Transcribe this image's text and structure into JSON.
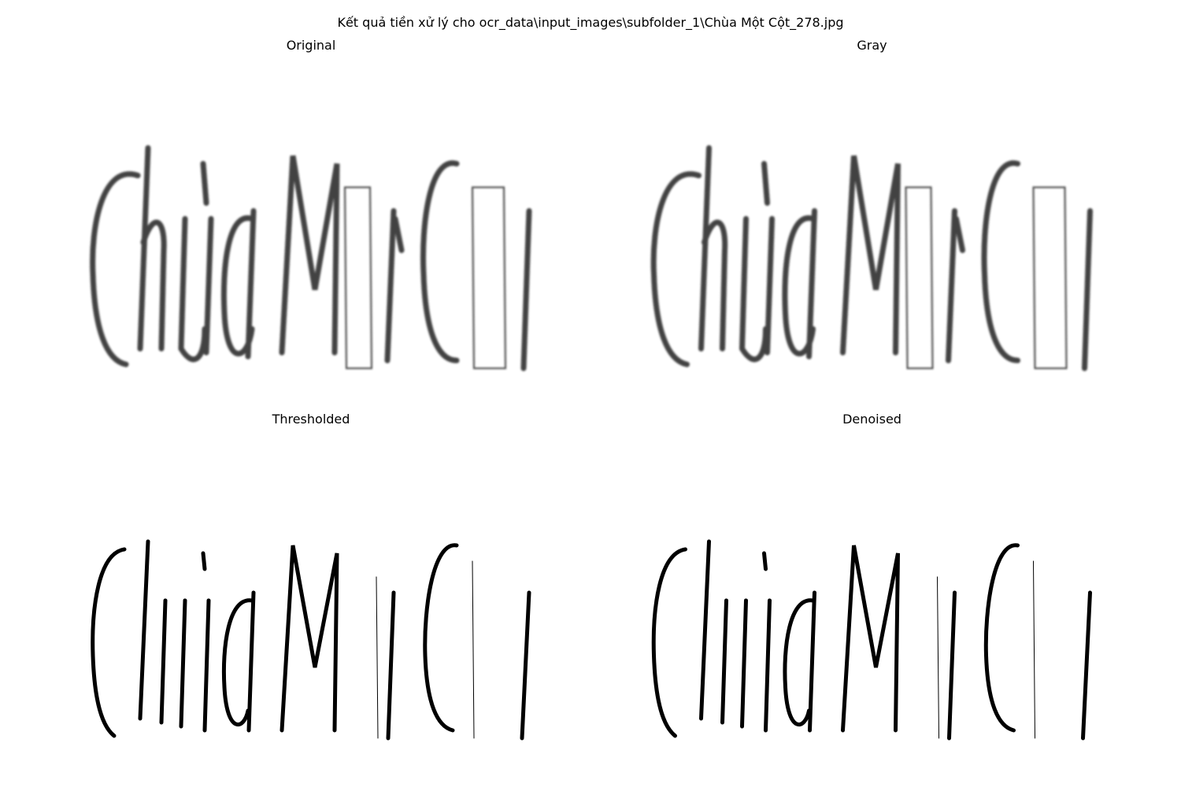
{
  "figure": {
    "title": "Kết quả tiền xử lý cho ocr_data\\input_images\\subfolder_1\\Chùa Một Cột_278.jpg"
  },
  "panels": [
    {
      "id": "original",
      "title": "Original",
      "image_text": "Chùa Một Cột",
      "style": "blurred-gray"
    },
    {
      "id": "gray",
      "title": "Gray",
      "image_text": "Chùa Một Cột",
      "style": "blurred-gray"
    },
    {
      "id": "thresholded",
      "title": "Thresholded",
      "image_text": "Chùa Một Cột",
      "style": "binary"
    },
    {
      "id": "denoised",
      "title": "Denoised",
      "image_text": "Chùa Một Cột",
      "style": "binary"
    }
  ],
  "colors": {
    "background": "#ffffff",
    "ink": "#000000",
    "gray_ink": "#222222"
  }
}
